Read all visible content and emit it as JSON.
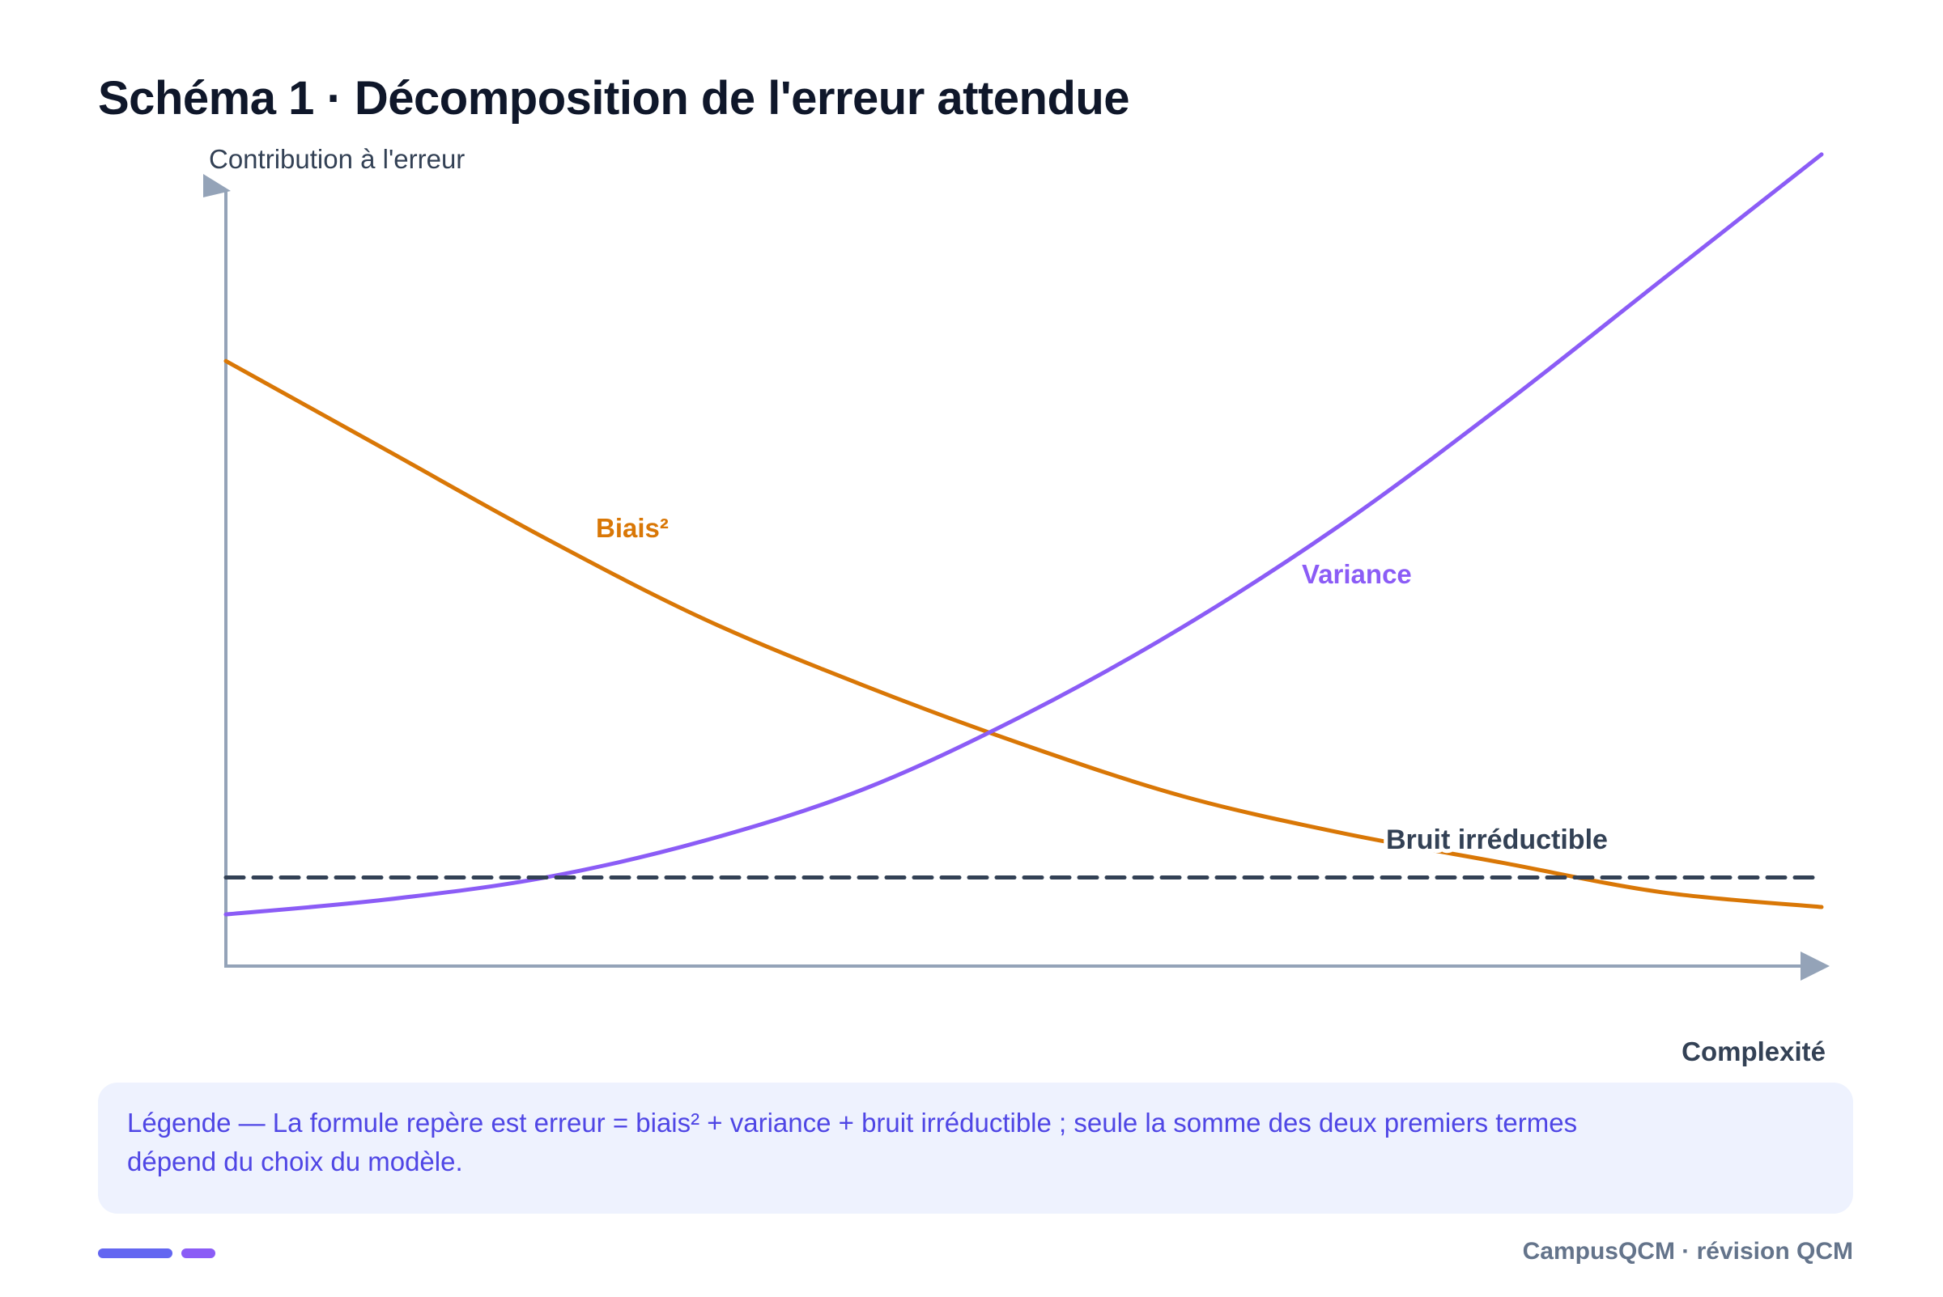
{
  "title": "Schéma 1 · Décomposition de l'erreur attendue",
  "chart_data": {
    "type": "line",
    "ylabel": "Contribution à l'erreur",
    "xlabel": "Complexité",
    "xlim": [
      0,
      1
    ],
    "ylim": [
      0,
      1
    ],
    "series": [
      {
        "name": "Biais²",
        "color": "#d97706",
        "style": "solid",
        "x": [
          0,
          0.1,
          0.2,
          0.3,
          0.4,
          0.5,
          0.6,
          0.7,
          0.8,
          0.9,
          1.0
        ],
        "y": [
          0.82,
          0.7,
          0.58,
          0.47,
          0.38,
          0.3,
          0.23,
          0.18,
          0.14,
          0.1,
          0.08
        ]
      },
      {
        "name": "Variance",
        "color": "#8b5cf6",
        "style": "solid",
        "x": [
          0,
          0.1,
          0.2,
          0.3,
          0.4,
          0.5,
          0.6,
          0.7,
          0.8,
          0.9,
          1.0
        ],
        "y": [
          0.07,
          0.09,
          0.12,
          0.17,
          0.24,
          0.34,
          0.46,
          0.6,
          0.76,
          0.93,
          1.1
        ]
      },
      {
        "name": "Bruit irréductible",
        "color": "#334155",
        "style": "dashed",
        "x": [
          0,
          1.0
        ],
        "y": [
          0.12,
          0.12
        ]
      }
    ],
    "annotations": [
      {
        "text": "Biais²",
        "series": 0,
        "color": "#d97706"
      },
      {
        "text": "Variance",
        "series": 1,
        "color": "#8b5cf6"
      },
      {
        "text": "Bruit irréductible",
        "series": 2,
        "color": "#334155"
      }
    ]
  },
  "caption": {
    "line1": "Légende — La formule repère est erreur = biais² + variance + bruit irréductible ; seule la somme des deux premiers termes",
    "line2": "dépend du choix du modèle."
  },
  "footer": "CampusQCM · révision QCM"
}
